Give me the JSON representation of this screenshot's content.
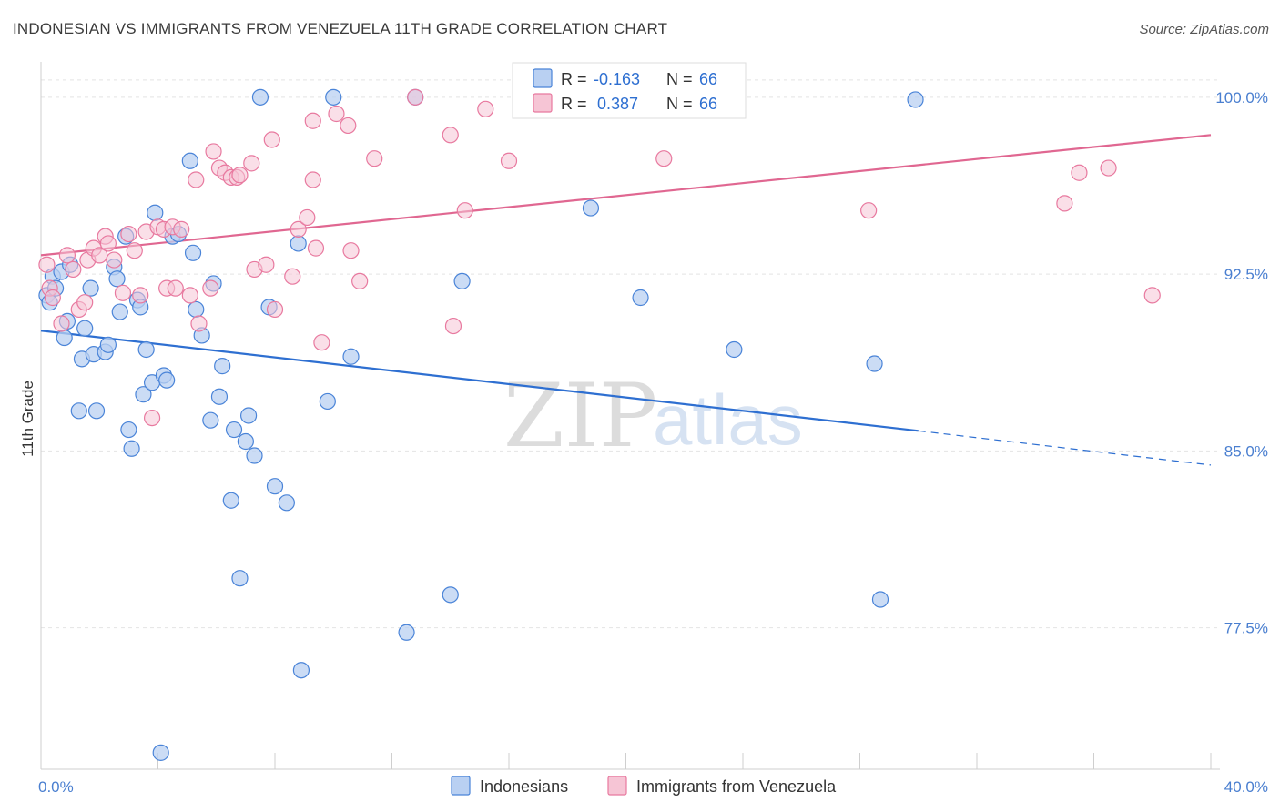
{
  "title": "INDONESIAN VS IMMIGRANTS FROM VENEZUELA 11TH GRADE CORRELATION CHART",
  "source": "Source: ZipAtlas.com",
  "watermark": {
    "zip": "ZIP",
    "atlas": "atlas"
  },
  "colors": {
    "blue": "#4a84d8",
    "blue_fill": "#b9d0f2",
    "blue_line": "#2e6fd1",
    "pink": "#e8799f",
    "pink_fill": "#f6c5d5",
    "pink_line": "#e06791",
    "tick": "#4a7fd0",
    "grid": "#e4e4e4"
  },
  "chart_data": {
    "type": "scatter",
    "xlabel": "",
    "ylabel": "11th Grade",
    "xlim": [
      0,
      40
    ],
    "ylim": [
      71.5,
      101.5
    ],
    "x_tick_labels": [
      {
        "value": 0,
        "label": "0.0%"
      },
      {
        "value": 40,
        "label": "40.0%"
      }
    ],
    "x_minor_ticks": [
      0,
      4,
      8,
      12,
      16,
      20,
      24,
      28,
      32,
      36,
      40
    ],
    "y_ticks": [
      {
        "value": 77.5,
        "label": "77.5%"
      },
      {
        "value": 85.0,
        "label": "85.0%"
      },
      {
        "value": 92.5,
        "label": "92.5%"
      },
      {
        "value": 100.0,
        "label": "100.0%"
      }
    ],
    "legend": {
      "stats": [
        {
          "r_label": "R =",
          "r_value": "-0.163",
          "n_label": "N =",
          "n_value": "66"
        },
        {
          "r_label": "R =",
          "r_value": "0.387",
          "n_label": "N =",
          "n_value": "66"
        }
      ],
      "bottom": [
        "Indonesians",
        "Immigrants from Venezuela"
      ]
    },
    "series": [
      {
        "name": "Indonesians",
        "trend": {
          "x0": 0,
          "y0": 90.1,
          "x1": 30,
          "y1": 85.85,
          "dash_to": 40,
          "dash_y": 84.4
        },
        "points": [
          [
            0.2,
            91.6
          ],
          [
            0.3,
            91.3
          ],
          [
            0.4,
            92.4
          ],
          [
            0.5,
            91.9
          ],
          [
            0.7,
            92.6
          ],
          [
            0.8,
            89.8
          ],
          [
            0.9,
            90.5
          ],
          [
            1.0,
            92.9
          ],
          [
            1.3,
            86.7
          ],
          [
            1.4,
            88.9
          ],
          [
            1.5,
            90.2
          ],
          [
            1.7,
            91.9
          ],
          [
            1.8,
            89.1
          ],
          [
            1.9,
            86.7
          ],
          [
            2.2,
            89.2
          ],
          [
            2.3,
            89.5
          ],
          [
            2.5,
            92.8
          ],
          [
            2.6,
            92.3
          ],
          [
            2.7,
            90.9
          ],
          [
            2.9,
            94.1
          ],
          [
            3.0,
            85.9
          ],
          [
            3.1,
            85.1
          ],
          [
            3.3,
            91.4
          ],
          [
            3.4,
            91.1
          ],
          [
            3.5,
            87.4
          ],
          [
            3.6,
            89.3
          ],
          [
            3.8,
            87.9
          ],
          [
            3.9,
            95.1
          ],
          [
            4.1,
            72.2
          ],
          [
            4.2,
            88.2
          ],
          [
            4.3,
            88.0
          ],
          [
            4.5,
            94.1
          ],
          [
            4.7,
            94.2
          ],
          [
            5.1,
            97.3
          ],
          [
            5.2,
            93.4
          ],
          [
            5.3,
            91.0
          ],
          [
            5.5,
            89.9
          ],
          [
            5.8,
            86.3
          ],
          [
            5.9,
            92.1
          ],
          [
            6.1,
            87.3
          ],
          [
            6.2,
            88.6
          ],
          [
            6.5,
            82.9
          ],
          [
            6.6,
            85.9
          ],
          [
            6.8,
            79.6
          ],
          [
            7.0,
            85.4
          ],
          [
            7.1,
            86.5
          ],
          [
            7.3,
            84.8
          ],
          [
            7.5,
            100.0
          ],
          [
            7.8,
            91.1
          ],
          [
            8.0,
            83.5
          ],
          [
            8.4,
            82.8
          ],
          [
            8.8,
            93.8
          ],
          [
            8.9,
            75.7
          ],
          [
            10.0,
            100.0
          ],
          [
            9.8,
            87.1
          ],
          [
            10.6,
            89.0
          ],
          [
            12.5,
            77.3
          ],
          [
            12.8,
            100.0
          ],
          [
            14.0,
            78.9
          ],
          [
            14.4,
            92.2
          ],
          [
            18.8,
            95.3
          ],
          [
            20.5,
            91.5
          ],
          [
            23.7,
            89.3
          ],
          [
            28.5,
            88.7
          ],
          [
            28.7,
            78.7
          ],
          [
            29.9,
            99.9
          ]
        ]
      },
      {
        "name": "Immigrants from Venezuela",
        "trend": {
          "x0": 0,
          "y0": 93.3,
          "x1": 40,
          "y1": 98.4
        },
        "points": [
          [
            0.2,
            92.9
          ],
          [
            0.3,
            91.9
          ],
          [
            0.4,
            91.5
          ],
          [
            0.7,
            90.4
          ],
          [
            0.9,
            93.3
          ],
          [
            1.1,
            92.7
          ],
          [
            1.3,
            91.0
          ],
          [
            1.5,
            91.3
          ],
          [
            1.6,
            93.1
          ],
          [
            1.8,
            93.6
          ],
          [
            2.0,
            93.3
          ],
          [
            2.2,
            94.1
          ],
          [
            2.3,
            93.8
          ],
          [
            2.5,
            93.1
          ],
          [
            2.8,
            91.7
          ],
          [
            3.0,
            94.2
          ],
          [
            3.2,
            93.5
          ],
          [
            3.4,
            91.6
          ],
          [
            3.6,
            94.3
          ],
          [
            3.8,
            86.4
          ],
          [
            4.0,
            94.5
          ],
          [
            4.2,
            94.4
          ],
          [
            4.3,
            91.9
          ],
          [
            4.5,
            94.5
          ],
          [
            4.6,
            91.9
          ],
          [
            4.8,
            94.4
          ],
          [
            5.1,
            91.6
          ],
          [
            5.3,
            96.5
          ],
          [
            5.4,
            90.4
          ],
          [
            5.8,
            91.9
          ],
          [
            5.9,
            97.7
          ],
          [
            6.1,
            97.0
          ],
          [
            6.3,
            96.8
          ],
          [
            6.5,
            96.6
          ],
          [
            6.7,
            96.6
          ],
          [
            7.2,
            97.2
          ],
          [
            7.3,
            92.7
          ],
          [
            7.7,
            92.9
          ],
          [
            7.9,
            98.2
          ],
          [
            8.0,
            91.0
          ],
          [
            8.6,
            92.4
          ],
          [
            8.8,
            94.4
          ],
          [
            9.1,
            94.9
          ],
          [
            9.3,
            99.0
          ],
          [
            9.4,
            93.6
          ],
          [
            9.6,
            89.6
          ],
          [
            10.1,
            99.3
          ],
          [
            10.5,
            98.8
          ],
          [
            10.6,
            93.5
          ],
          [
            10.9,
            92.2
          ],
          [
            11.4,
            97.4
          ],
          [
            12.8,
            100.0
          ],
          [
            14.0,
            98.4
          ],
          [
            14.1,
            90.3
          ],
          [
            14.5,
            95.2
          ],
          [
            15.2,
            99.5
          ],
          [
            16.0,
            97.3
          ],
          [
            21.3,
            97.4
          ],
          [
            22.0,
            100.0
          ],
          [
            28.3,
            95.2
          ],
          [
            35.0,
            95.5
          ],
          [
            35.5,
            96.8
          ],
          [
            36.5,
            97.0
          ],
          [
            38.0,
            91.6
          ],
          [
            9.3,
            96.5
          ],
          [
            6.8,
            96.7
          ]
        ]
      }
    ]
  }
}
